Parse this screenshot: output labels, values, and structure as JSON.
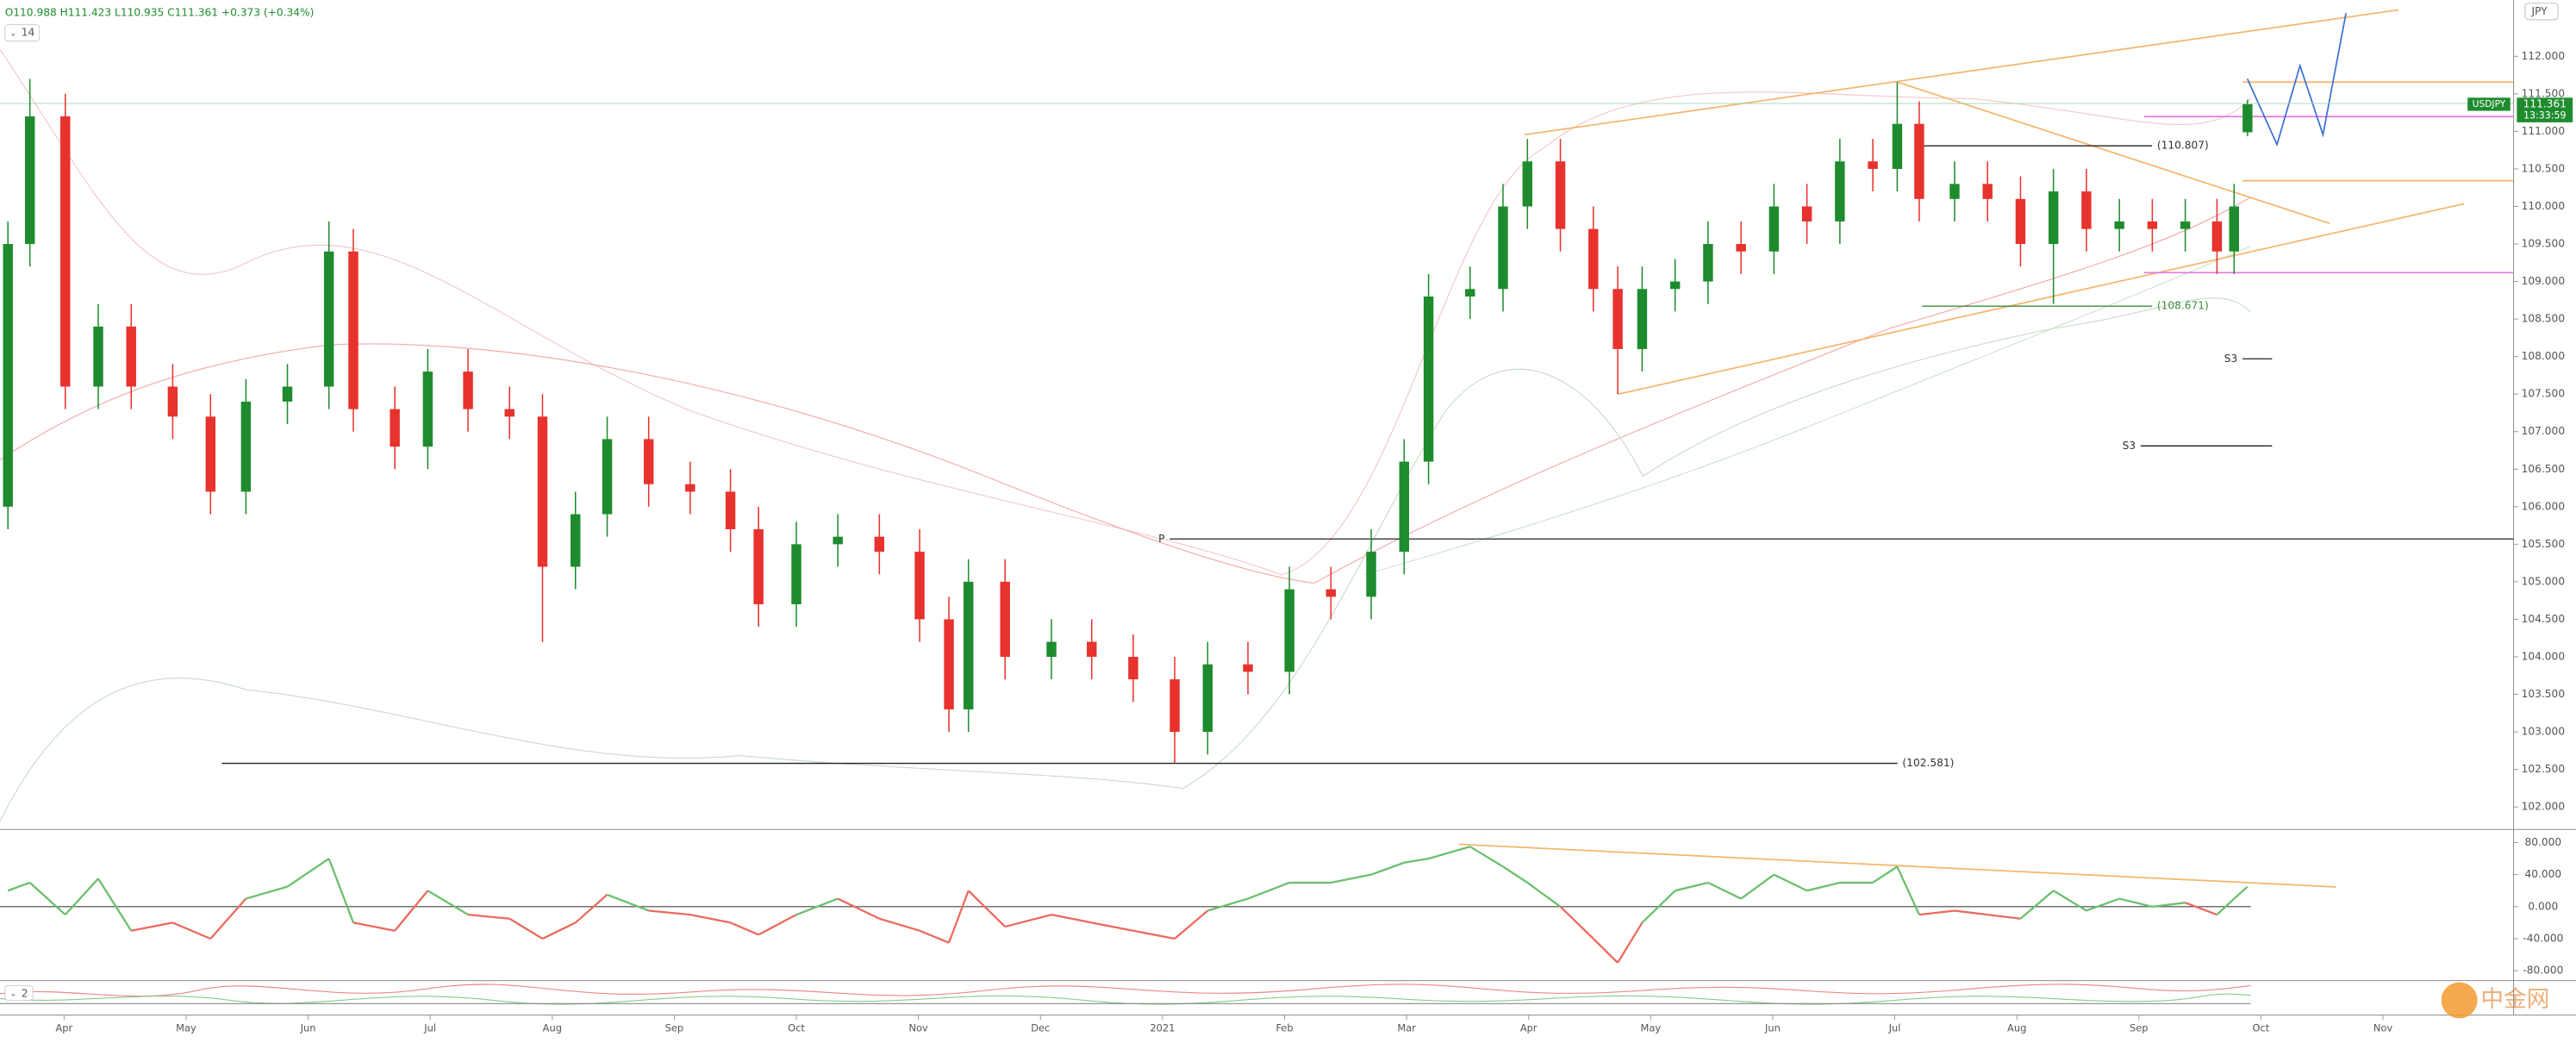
{
  "chart_data": [
    {
      "type": "candlestick",
      "symbol": "USDJPY",
      "ohlc_text": "O110.988 H111.423 L110.935 C111.361 +0.373 (+0.34%)",
      "interval": "14",
      "currency": "JPY",
      "last_price_label": "111.361",
      "last_price": 111.361,
      "countdown": "13:33:59",
      "watermark": "中金网",
      "up_color": "#1e8c2e",
      "down_color": "#e8322d",
      "x": [
        -0.46,
        -0.28,
        0.01,
        0.28,
        0.55,
        0.89,
        1.2,
        1.49,
        1.83,
        2.17,
        2.37,
        2.71,
        2.98,
        3.31,
        3.65,
        3.92,
        4.19,
        4.45,
        4.79,
        5.13,
        5.46,
        5.69,
        6.0,
        6.34,
        6.68,
        7.01,
        7.25,
        7.41,
        7.71,
        8.09,
        8.42,
        8.76,
        9.1,
        9.37,
        9.7,
        10.04,
        10.38,
        10.71,
        10.98,
        11.18,
        11.52,
        11.79,
        11.99,
        12.26,
        12.53,
        12.73,
        12.93,
        13.2,
        13.47,
        13.74,
        14.01,
        14.28,
        14.55,
        14.82,
        15.02,
        15.2,
        15.49,
        15.76,
        16.03,
        16.3,
        16.57,
        16.84,
        17.11,
        17.38,
        17.64,
        17.78,
        17.89
      ],
      "open": [
        106.0,
        109.5,
        111.2,
        107.6,
        108.4,
        107.6,
        107.2,
        106.2,
        107.4,
        107.6,
        109.4,
        107.3,
        106.8,
        107.8,
        107.3,
        107.2,
        105.2,
        105.9,
        106.9,
        106.3,
        106.2,
        105.7,
        104.7,
        105.5,
        105.6,
        105.4,
        104.5,
        103.3,
        105.0,
        104.0,
        104.2,
        104.0,
        103.7,
        103.0,
        103.9,
        103.8,
        104.9,
        104.8,
        105.4,
        106.6,
        108.8,
        108.9,
        110.0,
        110.6,
        109.7,
        108.9,
        108.1,
        108.9,
        109.0,
        109.5,
        109.4,
        110.0,
        109.8,
        110.6,
        110.5,
        111.1,
        110.1,
        110.3,
        110.1,
        109.5,
        110.2,
        109.7,
        109.8,
        109.7,
        109.8,
        109.4,
        110.988
      ],
      "high": [
        109.8,
        111.7,
        111.5,
        108.7,
        108.7,
        107.9,
        107.5,
        107.7,
        107.9,
        109.8,
        109.7,
        107.6,
        108.1,
        108.1,
        107.6,
        107.5,
        106.2,
        107.2,
        107.2,
        106.6,
        106.5,
        106.0,
        105.8,
        105.9,
        105.9,
        105.7,
        104.8,
        105.3,
        105.3,
        104.5,
        104.5,
        104.3,
        104.0,
        104.2,
        104.2,
        105.2,
        105.2,
        105.7,
        106.9,
        109.1,
        109.2,
        110.3,
        110.9,
        110.9,
        110.0,
        109.2,
        109.2,
        109.3,
        109.8,
        109.8,
        110.3,
        110.3,
        110.9,
        110.9,
        111.66,
        111.4,
        110.6,
        110.6,
        110.4,
        110.5,
        110.5,
        110.1,
        110.1,
        110.1,
        110.1,
        110.3,
        111.423
      ],
      "low": [
        105.7,
        109.2,
        107.3,
        107.3,
        107.3,
        106.9,
        105.9,
        105.9,
        107.1,
        107.3,
        107.0,
        106.5,
        106.5,
        107.0,
        106.9,
        104.2,
        104.9,
        105.6,
        106.0,
        105.9,
        105.4,
        104.4,
        104.4,
        105.2,
        105.1,
        104.2,
        103.0,
        103.0,
        103.7,
        103.7,
        103.7,
        103.4,
        102.581,
        102.7,
        103.5,
        103.5,
        104.5,
        104.5,
        105.1,
        106.3,
        108.5,
        108.6,
        109.7,
        109.4,
        108.6,
        107.5,
        107.8,
        108.6,
        108.7,
        109.1,
        109.1,
        109.5,
        109.5,
        110.2,
        110.2,
        109.8,
        109.8,
        109.8,
        109.2,
        108.7,
        109.4,
        109.4,
        109.4,
        109.4,
        109.1,
        109.1,
        110.935
      ],
      "close": [
        109.5,
        111.2,
        107.6,
        108.4,
        107.6,
        107.2,
        106.2,
        107.4,
        107.6,
        109.4,
        107.3,
        106.8,
        107.8,
        107.3,
        107.2,
        105.2,
        105.9,
        106.9,
        106.3,
        106.2,
        105.7,
        104.7,
        105.5,
        105.6,
        105.4,
        104.5,
        103.3,
        105.0,
        104.0,
        104.2,
        104.0,
        103.7,
        103.0,
        103.9,
        103.8,
        104.9,
        104.8,
        105.4,
        106.6,
        108.8,
        108.9,
        110.0,
        110.6,
        109.7,
        108.9,
        108.1,
        108.9,
        109.0,
        109.5,
        109.4,
        110.0,
        109.8,
        110.6,
        110.5,
        111.1,
        110.1,
        110.3,
        110.1,
        109.5,
        110.2,
        109.7,
        109.8,
        109.7,
        109.8,
        109.4,
        110.0,
        111.361
      ],
      "ylim": [
        101.7,
        112.75
      ],
      "yticks": [
        {
          "value": 102,
          "label": "102.000"
        },
        {
          "value": 102.5,
          "label": "102.500"
        },
        {
          "value": 103,
          "label": "103.000"
        },
        {
          "value": 103.5,
          "label": "103.500"
        },
        {
          "value": 104,
          "label": "104.000"
        },
        {
          "value": 104.5,
          "label": "104.500"
        },
        {
          "value": 105,
          "label": "105.000"
        },
        {
          "value": 105.5,
          "label": "105.500"
        },
        {
          "value": 106,
          "label": "106.000"
        },
        {
          "value": 106.5,
          "label": "106.500"
        },
        {
          "value": 107,
          "label": "107.000"
        },
        {
          "value": 107.5,
          "label": "107.500"
        },
        {
          "value": 108,
          "label": "108.000"
        },
        {
          "value": 108.5,
          "label": "108.500"
        },
        {
          "value": 109,
          "label": "109.000"
        },
        {
          "value": 109.5,
          "label": "109.500"
        },
        {
          "value": 110,
          "label": "110.000"
        },
        {
          "value": 110.5,
          "label": "110.500"
        },
        {
          "value": 111,
          "label": "111.000"
        },
        {
          "value": 111.5,
          "label": "111.500"
        },
        {
          "value": 112,
          "label": "112.000"
        }
      ],
      "xlim": [
        -0.525,
        20.07
      ],
      "xticks": [
        {
          "value": 0,
          "label": "Apr"
        },
        {
          "value": 1,
          "label": "May"
        },
        {
          "value": 2,
          "label": "Jun"
        },
        {
          "value": 3,
          "label": "Jul"
        },
        {
          "value": 4,
          "label": "Aug"
        },
        {
          "value": 5,
          "label": "Sep"
        },
        {
          "value": 6,
          "label": "Oct"
        },
        {
          "value": 7,
          "label": "Nov"
        },
        {
          "value": 8,
          "label": "Dec"
        },
        {
          "value": 9,
          "label": "2021"
        },
        {
          "value": 10,
          "label": "Feb"
        },
        {
          "value": 11,
          "label": "Mar"
        },
        {
          "value": 12,
          "label": "Apr"
        },
        {
          "value": 13,
          "label": "May"
        },
        {
          "value": 14,
          "label": "Jun"
        },
        {
          "value": 15,
          "label": "Jul"
        },
        {
          "value": 16,
          "label": "Aug"
        },
        {
          "value": 17,
          "label": "Sep"
        },
        {
          "value": 18,
          "label": "Oct"
        },
        {
          "value": 19,
          "label": "Nov"
        }
      ],
      "levels": [
        {
          "value": 110.807,
          "label": "(110.807)"
        },
        {
          "value": 108.671,
          "label": "(108.671)"
        },
        {
          "value": 102.581,
          "label": "(102.581)"
        },
        {
          "value": 105.57,
          "label": "P"
        },
        {
          "value": 107.97,
          "label": "S3"
        },
        {
          "value": 106.81,
          "label": "S3"
        }
      ]
    },
    {
      "type": "line",
      "up_color": "#6cbf6c",
      "down_color": "#ec6a5e",
      "indicator_count": "2",
      "values": [
        20,
        30,
        -10,
        35,
        -30,
        -20,
        -40,
        10,
        25,
        60,
        -20,
        -30,
        20,
        -10,
        -15,
        -40,
        -20,
        15,
        -5,
        -10,
        -20,
        -35,
        -10,
        10,
        -15,
        -30,
        -45,
        20,
        -25,
        -10,
        -20,
        -30,
        -40,
        -5,
        10,
        30,
        30,
        40,
        55,
        60,
        75,
        50,
        30,
        0,
        -40,
        -70,
        -20,
        20,
        30,
        10,
        40,
        20,
        30,
        30,
        50,
        -10,
        -5,
        -10,
        -15,
        20,
        -5,
        10,
        0,
        5,
        -10,
        10,
        25
      ],
      "ylim": [
        -92.3,
        96.4
      ],
      "yticks": [
        {
          "value": 80,
          "label": "80.000"
        },
        {
          "value": 40,
          "label": "40.000"
        },
        {
          "value": 0,
          "label": "0.000"
        },
        {
          "value": -40,
          "label": "-40.000"
        },
        {
          "value": -80,
          "label": "-80.000"
        }
      ]
    }
  ]
}
